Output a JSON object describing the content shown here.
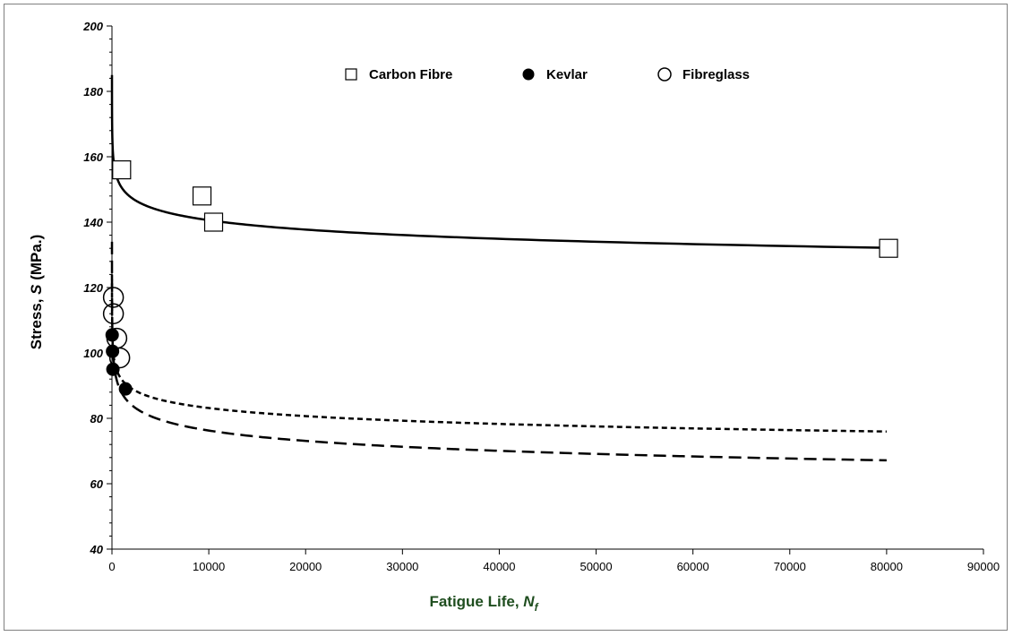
{
  "chart_data": {
    "type": "scatter",
    "xlabel_parts": {
      "text": "Fatigue Life, ",
      "italic": "N",
      "sub": "f"
    },
    "ylabel_parts": {
      "pre": "Stress, ",
      "italic": "S",
      "post": " (MPa.)"
    },
    "xlabel_color": "#1f4e1f",
    "xlim": [
      0,
      90000
    ],
    "ylim": [
      40,
      200
    ],
    "xticks": [
      0,
      10000,
      20000,
      30000,
      40000,
      50000,
      60000,
      70000,
      80000,
      90000
    ],
    "yticks": [
      40,
      60,
      80,
      100,
      120,
      140,
      160,
      180,
      200
    ],
    "legend_position": "top-center",
    "grid": false,
    "series": [
      {
        "name": "Carbon Fibre",
        "marker": "open-square",
        "points": [
          [
            1000,
            156
          ],
          [
            9300,
            148
          ],
          [
            10500,
            140
          ],
          [
            80200,
            132
          ]
        ],
        "fit": {
          "style": "solid",
          "a": 185,
          "b": 0.0298
        }
      },
      {
        "name": "Kevlar",
        "marker": "filled-circle",
        "points": [
          [
            20,
            105.5
          ],
          [
            60,
            100.5
          ],
          [
            100,
            95
          ],
          [
            1400,
            89
          ]
        ],
        "fit": {
          "style": "long-dash",
          "a": 134,
          "b": 0.0612
        }
      },
      {
        "name": "Fibreglass",
        "marker": "open-circle",
        "points": [
          [
            150,
            117
          ],
          [
            150,
            112
          ],
          [
            500,
            104.5
          ],
          [
            800,
            98.5
          ]
        ],
        "fit": {
          "style": "short-dash",
          "a": 124,
          "b": 0.0434
        }
      }
    ]
  }
}
